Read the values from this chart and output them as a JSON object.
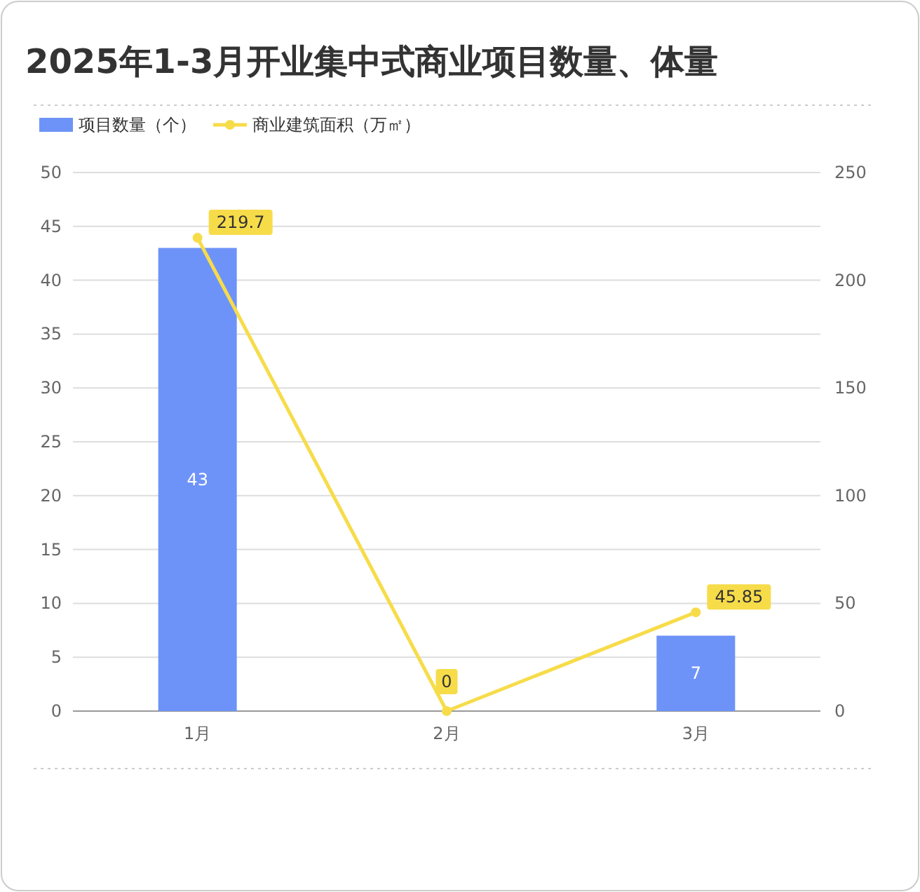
{
  "chart_data": {
    "type": "bar",
    "title": "2025年1-3月开业集中式商业项目数量、体量",
    "categories": [
      "1月",
      "2月",
      "3月"
    ],
    "series": [
      {
        "name": "项目数量（个）",
        "color": "#6e93f8",
        "values": [
          43,
          0,
          7
        ],
        "value_labels": [
          "43",
          null,
          "7"
        ]
      },
      {
        "name": "商业建筑面积（万㎡）",
        "type": "line",
        "axis": "y2",
        "color": "#f7dc4a",
        "values": [
          219.7,
          0,
          45.85
        ],
        "value_labels": [
          "219.7",
          "0",
          "45.85"
        ]
      }
    ],
    "ylim": [
      0,
      50
    ],
    "yticks": [
      0,
      5,
      10,
      15,
      20,
      25,
      30,
      35,
      40,
      45,
      50
    ],
    "y2lim": [
      0,
      250
    ],
    "y2ticks": [
      0,
      50,
      100,
      150,
      200,
      250
    ],
    "grid": "y",
    "legend": "top left",
    "marker": "circle"
  }
}
